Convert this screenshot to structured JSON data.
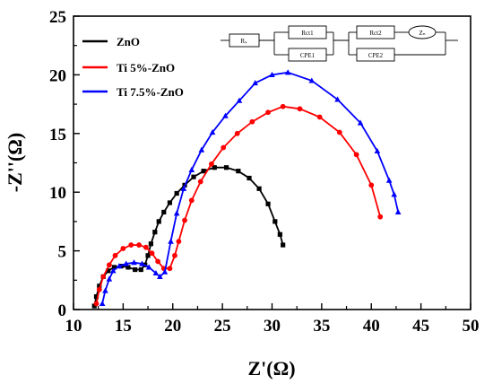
{
  "chart_data": {
    "type": "scatter",
    "xlabel": "Z'(Ω)",
    "ylabel": "-Z''(Ω)",
    "xlim": [
      10,
      50
    ],
    "ylim": [
      0,
      25
    ],
    "xticks": [
      "10",
      "15",
      "20",
      "25",
      "30",
      "35",
      "40",
      "45",
      "50"
    ],
    "yticks": [
      "0",
      "5",
      "10",
      "15",
      "20",
      "25"
    ],
    "legend_position": "top-left",
    "series": [
      {
        "name": "ZnO",
        "color": "#000000",
        "marker": "square",
        "points": [
          [
            12.1,
            0.3
          ],
          [
            12.3,
            1.1
          ],
          [
            12.6,
            2.0
          ],
          [
            13.0,
            2.8
          ],
          [
            13.5,
            3.3
          ],
          [
            14.1,
            3.6
          ],
          [
            14.8,
            3.7
          ],
          [
            15.5,
            3.6
          ],
          [
            16.2,
            3.4
          ],
          [
            16.8,
            3.4
          ],
          [
            17.2,
            3.8
          ],
          [
            17.5,
            4.6
          ],
          [
            17.8,
            5.6
          ],
          [
            18.2,
            6.6
          ],
          [
            18.6,
            7.5
          ],
          [
            19.1,
            8.3
          ],
          [
            19.7,
            9.1
          ],
          [
            20.4,
            9.9
          ],
          [
            21.2,
            10.6
          ],
          [
            22.1,
            11.3
          ],
          [
            23.1,
            11.8
          ],
          [
            24.2,
            12.1
          ],
          [
            25.4,
            12.1
          ],
          [
            26.6,
            11.8
          ],
          [
            27.7,
            11.2
          ],
          [
            28.7,
            10.3
          ],
          [
            29.6,
            9.0
          ],
          [
            30.3,
            7.5
          ],
          [
            30.8,
            6.4
          ],
          [
            31.1,
            5.5
          ]
        ]
      },
      {
        "name": "Ti 5%-ZnO",
        "color": "#ff0000",
        "marker": "circle",
        "points": [
          [
            12.3,
            0.5
          ],
          [
            12.6,
            1.7
          ],
          [
            13.0,
            2.8
          ],
          [
            13.6,
            3.8
          ],
          [
            14.2,
            4.6
          ],
          [
            15.0,
            5.2
          ],
          [
            15.8,
            5.5
          ],
          [
            16.6,
            5.5
          ],
          [
            17.3,
            5.3
          ],
          [
            17.9,
            4.8
          ],
          [
            18.5,
            4.1
          ],
          [
            19.1,
            3.5
          ],
          [
            19.7,
            3.5
          ],
          [
            20.2,
            4.6
          ],
          [
            20.6,
            5.8
          ],
          [
            21.2,
            7.6
          ],
          [
            21.9,
            9.3
          ],
          [
            22.8,
            10.9
          ],
          [
            23.9,
            12.4
          ],
          [
            25.1,
            13.8
          ],
          [
            26.5,
            15.0
          ],
          [
            28.0,
            16.0
          ],
          [
            29.6,
            16.8
          ],
          [
            31.1,
            17.3
          ],
          [
            32.8,
            17.1
          ],
          [
            34.8,
            16.4
          ],
          [
            36.8,
            15.1
          ],
          [
            38.5,
            13.2
          ],
          [
            40.0,
            10.6
          ],
          [
            40.9,
            7.9
          ]
        ]
      },
      {
        "name": "Ti 7.5%-ZnO",
        "color": "#0000ff",
        "marker": "triangle",
        "points": [
          [
            12.9,
            0.5
          ],
          [
            13.2,
            1.6
          ],
          [
            13.6,
            2.6
          ],
          [
            14.0,
            3.3
          ],
          [
            14.6,
            3.7
          ],
          [
            15.3,
            3.9
          ],
          [
            16.1,
            4.0
          ],
          [
            16.9,
            3.9
          ],
          [
            17.6,
            3.6
          ],
          [
            18.3,
            3.1
          ],
          [
            18.7,
            2.8
          ],
          [
            19.2,
            3.2
          ],
          [
            19.8,
            5.8
          ],
          [
            20.4,
            8.2
          ],
          [
            21.1,
            10.3
          ],
          [
            21.9,
            11.9
          ],
          [
            22.9,
            13.6
          ],
          [
            24.0,
            15.1
          ],
          [
            25.3,
            16.5
          ],
          [
            26.7,
            17.8
          ],
          [
            28.3,
            19.3
          ],
          [
            30.0,
            20.0
          ],
          [
            31.6,
            20.2
          ],
          [
            34.0,
            19.5
          ],
          [
            36.6,
            17.9
          ],
          [
            38.9,
            15.9
          ],
          [
            40.6,
            13.5
          ],
          [
            41.8,
            11.0
          ],
          [
            42.3,
            9.8
          ],
          [
            42.7,
            8.3
          ]
        ]
      }
    ]
  },
  "circuit": {
    "rs": "Rₛ",
    "rct1": "Rct1",
    "cpe1": "CPE1",
    "rct2": "Rct2",
    "cpe2": "CPE2",
    "zn": "Zₙ"
  }
}
